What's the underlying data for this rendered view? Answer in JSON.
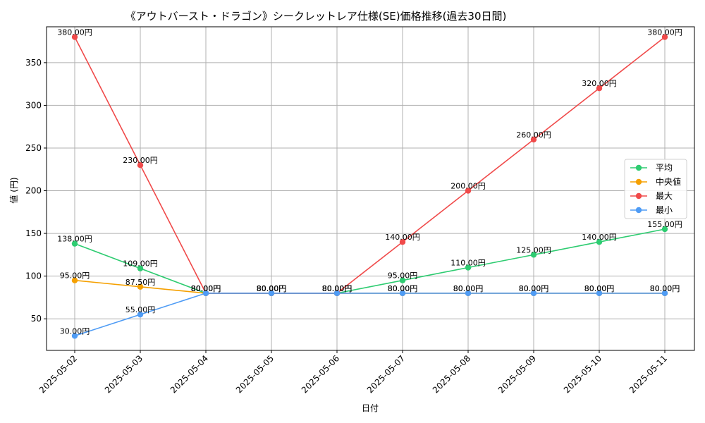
{
  "chart_data": {
    "type": "line",
    "title": "《アウトバースト・ドラゴン》シークレットレア仕様(SE)価格推移(過去30日間)",
    "xlabel": "日付",
    "ylabel": "値 (円)",
    "categories": [
      "2025-05-02",
      "2025-05-03",
      "2025-05-04",
      "2025-05-05",
      "2025-05-06",
      "2025-05-07",
      "2025-05-08",
      "2025-05-09",
      "2025-05-10",
      "2025-05-11"
    ],
    "ylim": [
      13,
      392
    ],
    "yticks": [
      50,
      100,
      150,
      200,
      250,
      300,
      350
    ],
    "grid": true,
    "legend_position": "right",
    "label_suffix": "円",
    "series": [
      {
        "name": "平均",
        "color": "#2ecc71",
        "values": [
          138,
          109,
          80,
          80,
          80,
          95,
          110,
          125,
          140,
          155
        ]
      },
      {
        "name": "中央値",
        "color": "#f5a000",
        "values": [
          95,
          87.5,
          80,
          80,
          80,
          80,
          80,
          80,
          80,
          80
        ]
      },
      {
        "name": "最大",
        "color": "#f04a4a",
        "values": [
          380,
          230,
          80,
          80,
          80,
          140,
          200,
          260,
          320,
          380
        ]
      },
      {
        "name": "最小",
        "color": "#4f9cf5",
        "values": [
          30,
          55,
          80,
          80,
          80,
          80,
          80,
          80,
          80,
          80
        ]
      }
    ]
  }
}
